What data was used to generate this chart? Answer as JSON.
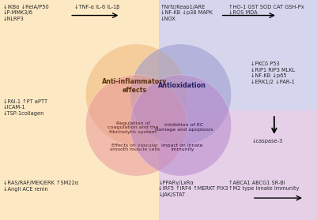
{
  "bg_color": "#ffffff",
  "quadrant_colors": {
    "top_left": "#fce8c3",
    "top_right": "#d5d5ee",
    "bottom_left": "#fce8c3",
    "bottom_right": "#e5d0e8"
  },
  "ellipse_colors": {
    "anti_inflammatory": "#f0b87a",
    "antioxidation": "#9898cc",
    "coagulation": "#e89898",
    "inhibition_ec": "#b888cc"
  },
  "text_blocks": {
    "top_left_corner": "↓IKBα ↓RelA/P50\n↓P-MMK3/6\n↓NLRP3",
    "top_left_arrow_target": "↓TNF-α IL-6 IL-1β",
    "top_right_corner": "↑Nrfz/Keap1/ARE\n↓NF-KB ↓p38 MAPK\n↓NOX",
    "top_right_arrow_target": "↑HO-1 GST SOD CAT GSH-Px\n↓ROS MDA",
    "right_upper": "↓PKCδ P53\n↓RIP1 RIP3 MLKL\n↓NF-KB ↓p65\n↓ERK1/2 ↓PAR-1",
    "right_lower_arrow": "↓caspase-3",
    "left_mid": "↓PAI-1 ↑PT aPTT\n↓ICAM-1\n↓TSP-1collagen",
    "bottom_left": "↓RAS/RAF/MEK/ERK ↑SM22α\n↓AngII ACE renin",
    "bottom_mid": "↓PPARγ/LxRα\n↓IRF5 ↑IRF4 ↑MERKT PIX3\n↓JAK/STAT",
    "bottom_right": "↑ABCA1 ABCG1 SR-BI\n↑M2 type innate immunity"
  },
  "ellipse_labels": {
    "anti_inflammatory": "Anti-inflammatory\neffects",
    "antioxidation": "Antioxidation",
    "coagulation": "Regulation of\ncoagulation and the\nfibrinolytic system",
    "inhibition_ec": "Inhibition of EC\ndamage and apoptosis",
    "vascular": "Effects on vascular\nsmooth muscle cells",
    "innate_immunity": "Impact on innate\nimmunity"
  }
}
